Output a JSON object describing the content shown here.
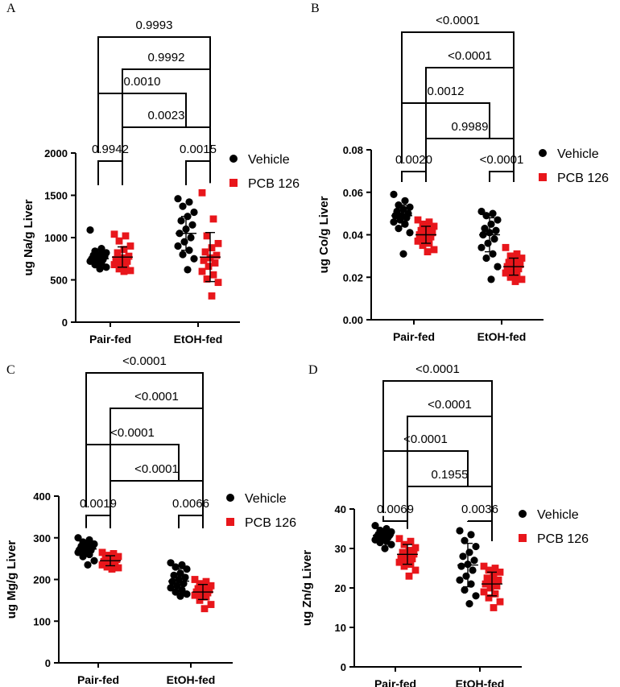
{
  "legend": [
    {
      "name": "Vehicle",
      "color": "#000000",
      "marker": "circle"
    },
    {
      "name": "PCB 126",
      "color": "#e8161b",
      "marker": "square"
    }
  ],
  "chart_data": [
    {
      "panel": "A",
      "type": "scatter",
      "ylabel": "ug Na/g Liver",
      "ylim": [
        0,
        2000
      ],
      "yticks": [
        "0",
        "500",
        "1000",
        "1500",
        "2000"
      ],
      "categories": [
        "Pair-fed",
        "EtOH-fed"
      ],
      "series": [
        {
          "name": "Vehicle",
          "group_means": [
            750,
            1050
          ],
          "group_sd": [
            80,
            200
          ],
          "values": [
            [
              1090,
              870,
              840,
              820,
              800,
              790,
              775,
              760,
              750,
              740,
              730,
              720,
              700,
              680,
              650,
              630
            ],
            [
              1460,
              1420,
              1370,
              1300,
              1250,
              1200,
              1150,
              1100,
              1050,
              1000,
              950,
              900,
              850,
              800,
              750,
              620
            ]
          ]
        },
        {
          "name": "PCB 126",
          "group_means": [
            770,
            770
          ],
          "group_sd": [
            120,
            290
          ],
          "values": [
            [
              1040,
              1020,
              960,
              900,
              860,
              820,
              780,
              760,
              740,
              720,
              700,
              680,
              650,
              630,
              610,
              600
            ],
            [
              1530,
              1220,
              1020,
              930,
              880,
              830,
              790,
              760,
              730,
              700,
              660,
              600,
              560,
              510,
              470,
              310
            ]
          ]
        }
      ],
      "comparisons": [
        {
          "label": "0.9942"
        },
        {
          "label": "0.0015"
        },
        {
          "label": "0.0023"
        },
        {
          "label": "0.0010"
        },
        {
          "label": "0.9992"
        },
        {
          "label": "0.9993"
        }
      ]
    },
    {
      "panel": "B",
      "type": "scatter",
      "ylabel": "ug Co/g Liver",
      "ylim": [
        0,
        0.08
      ],
      "yticks": [
        "0.00",
        "0.02",
        "0.04",
        "0.06",
        "0.08"
      ],
      "categories": [
        "Pair-fed",
        "EtOH-fed"
      ],
      "series": [
        {
          "name": "Vehicle",
          "group_means": [
            0.049,
            0.04
          ],
          "group_sd": [
            0.005,
            0.008
          ],
          "values": [
            [
              0.059,
              0.056,
              0.054,
              0.053,
              0.052,
              0.051,
              0.05,
              0.049,
              0.049,
              0.048,
              0.047,
              0.046,
              0.045,
              0.043,
              0.041,
              0.031
            ],
            [
              0.051,
              0.05,
              0.049,
              0.047,
              0.045,
              0.043,
              0.042,
              0.041,
              0.04,
              0.038,
              0.036,
              0.034,
              0.031,
              0.029,
              0.025,
              0.019
            ]
          ]
        },
        {
          "name": "PCB 126",
          "group_means": [
            0.04,
            0.025
          ],
          "group_sd": [
            0.004,
            0.004
          ],
          "values": [
            [
              0.047,
              0.046,
              0.045,
              0.044,
              0.043,
              0.042,
              0.041,
              0.04,
              0.04,
              0.039,
              0.038,
              0.037,
              0.036,
              0.035,
              0.033,
              0.032
            ],
            [
              0.034,
              0.031,
              0.03,
              0.029,
              0.028,
              0.027,
              0.026,
              0.025,
              0.025,
              0.024,
              0.023,
              0.022,
              0.021,
              0.02,
              0.019,
              0.018
            ]
          ]
        }
      ],
      "comparisons": [
        {
          "label": "0.0020"
        },
        {
          "label": "<0.0001"
        },
        {
          "label": "0.9989"
        },
        {
          "label": "0.0012"
        },
        {
          "label": "<0.0001"
        },
        {
          "label": "<0.0001"
        }
      ]
    },
    {
      "panel": "C",
      "type": "scatter",
      "ylabel": "ug Mg/g Liver",
      "ylim": [
        0,
        400
      ],
      "yticks": [
        "0",
        "100",
        "200",
        "300",
        "400"
      ],
      "categories": [
        "Pair-fed",
        "EtOH-fed"
      ],
      "series": [
        {
          "name": "Vehicle",
          "group_means": [
            273,
            196
          ],
          "group_sd": [
            15,
            30
          ],
          "values": [
            [
              300,
              295,
              290,
              285,
              282,
              280,
              278,
              275,
              272,
              270,
              268,
              265,
              260,
              255,
              245,
              235
            ],
            [
              240,
              235,
              230,
              225,
              215,
              210,
              205,
              200,
              195,
              190,
              185,
              180,
              175,
              170,
              165,
              160
            ]
          ]
        },
        {
          "name": "PCB 126",
          "group_means": [
            245,
            170
          ],
          "group_sd": [
            12,
            18
          ],
          "values": [
            [
              265,
              262,
              258,
              255,
              252,
              250,
              248,
              245,
              243,
              240,
              238,
              235,
              232,
              230,
              228,
              225
            ],
            [
              200,
              195,
              190,
              185,
              180,
              178,
              175,
              172,
              170,
              168,
              165,
              162,
              158,
              150,
              140,
              130
            ]
          ]
        }
      ],
      "comparisons": [
        {
          "label": "0.0019"
        },
        {
          "label": "0.0066"
        },
        {
          "label": "<0.0001"
        },
        {
          "label": "<0.0001"
        },
        {
          "label": "<0.0001"
        },
        {
          "label": "<0.0001"
        }
      ]
    },
    {
      "panel": "D",
      "type": "scatter",
      "ylabel": "ug Zn/g Liver",
      "ylim": [
        0,
        40
      ],
      "yticks": [
        "0",
        "10",
        "20",
        "30",
        "40"
      ],
      "categories": [
        "Pair-fed",
        "EtOH-fed"
      ],
      "series": [
        {
          "name": "Vehicle",
          "group_means": [
            33.3,
            25.8
          ],
          "group_sd": [
            1.5,
            5.5
          ],
          "values": [
            [
              35.8,
              35.0,
              34.6,
              34.2,
              33.8,
              33.6,
              33.4,
              33.2,
              33.0,
              32.8,
              32.5,
              32.2,
              31.8,
              31.5,
              31.0,
              30.0
            ],
            [
              34.5,
              33.5,
              32.0,
              30.5,
              29.0,
              28.0,
              27.0,
              26.0,
              25.5,
              24.5,
              23.0,
              22.0,
              21.0,
              19.5,
              18.0,
              16.0
            ]
          ]
        },
        {
          "name": "PCB 126",
          "group_means": [
            28.5,
            21.0
          ],
          "group_sd": [
            2.5,
            3.0
          ],
          "values": [
            [
              32.5,
              31.8,
              31.0,
              30.2,
              29.5,
              29.0,
              28.6,
              28.2,
              27.8,
              27.4,
              27.0,
              26.5,
              26.0,
              25.5,
              24.5,
              23.0
            ],
            [
              25.5,
              25.0,
              24.5,
              24.0,
              23.0,
              22.5,
              22.0,
              21.5,
              21.0,
              20.5,
              20.0,
              19.0,
              18.5,
              17.5,
              16.5,
              15.0
            ]
          ]
        }
      ],
      "comparisons": [
        {
          "label": "0.0069"
        },
        {
          "label": "0.0036"
        },
        {
          "label": "0.1955"
        },
        {
          "label": "<0.0001"
        },
        {
          "label": "<0.0001"
        },
        {
          "label": "<0.0001"
        }
      ]
    }
  ]
}
